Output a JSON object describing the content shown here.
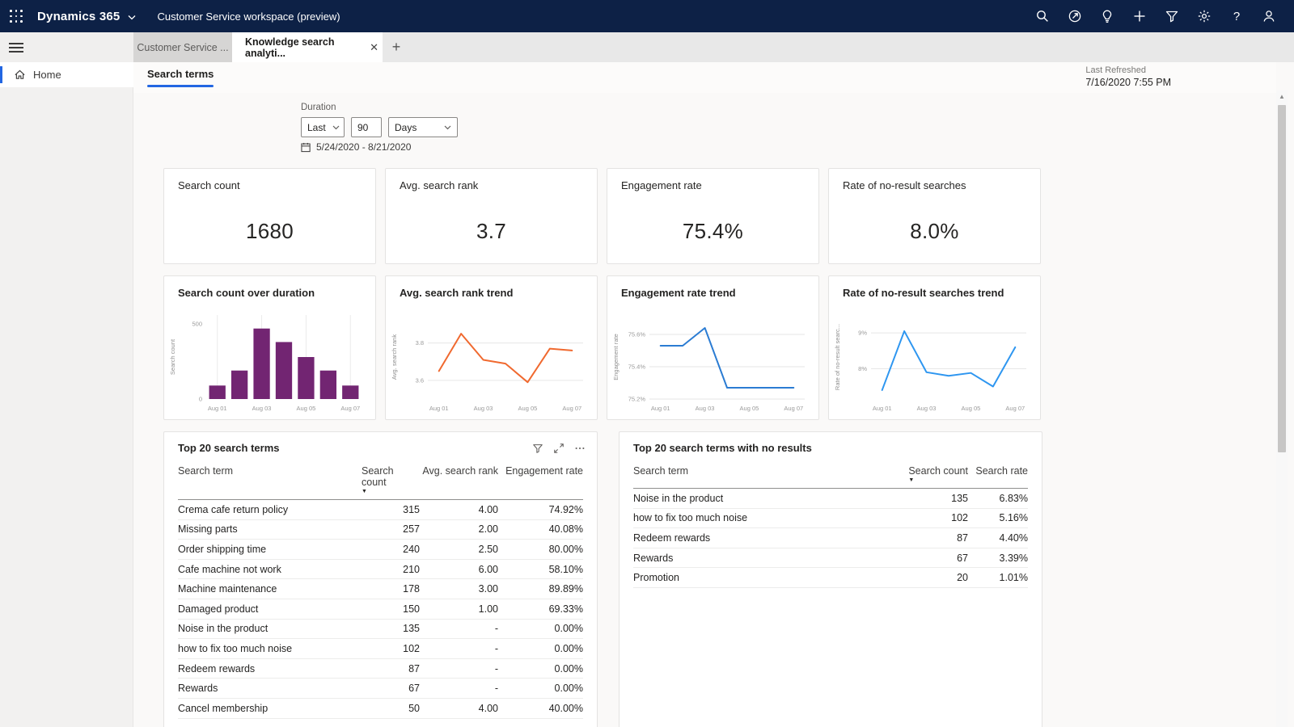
{
  "topbar": {
    "brand": "Dynamics 365",
    "workspace": "Customer Service workspace (preview)",
    "icons": [
      "search-icon",
      "guided-help-icon",
      "insights-icon",
      "add-icon",
      "filter-icon",
      "settings-icon",
      "help-icon",
      "account-icon"
    ],
    "bg_color": "#0d2146"
  },
  "tabs": {
    "inactive": "Customer Service ...",
    "active": "Knowledge search analyti...",
    "close_glyph": "✕",
    "add_glyph": "+"
  },
  "sidebar": {
    "home": "Home"
  },
  "header": {
    "pivot": "Search terms",
    "last_refreshed_label": "Last Refreshed",
    "last_refreshed_value": "7/16/2020 7:55 PM",
    "accent_color": "#2266e2"
  },
  "filters": {
    "duration_label": "Duration",
    "range_mode": "Last",
    "range_value": "90",
    "range_unit": "Days",
    "date_range": "5/24/2020 - 8/21/2020"
  },
  "kpis": [
    {
      "title": "Search count",
      "value": "1680"
    },
    {
      "title": "Avg. search rank",
      "value": "3.7"
    },
    {
      "title": "Engagement rate",
      "value": "75.4%"
    },
    {
      "title": "Rate of no-result searches",
      "value": "8.0%"
    }
  ],
  "chart_data": [
    {
      "type": "bar",
      "title": "Search count over duration",
      "ylabel": "Search count",
      "categories": [
        "Aug 01",
        "Aug 02",
        "Aug 03",
        "Aug 04",
        "Aug 05",
        "Aug 06",
        "Aug 07"
      ],
      "values": [
        90,
        190,
        470,
        380,
        280,
        190,
        90
      ],
      "ylim": [
        0,
        560
      ],
      "y_ticks": [
        {
          "v": 0,
          "label": "0"
        },
        {
          "v": 500,
          "label": "500"
        }
      ],
      "x_labeled": [
        0,
        2,
        4,
        6
      ],
      "color": "#722572",
      "grid": "vertical",
      "legend": "none"
    },
    {
      "type": "line",
      "title": "Avg. search rank trend",
      "ylabel": "Avg. search rank",
      "categories": [
        "Aug 01",
        "Aug 02",
        "Aug 03",
        "Aug 04",
        "Aug 05",
        "Aug 06",
        "Aug 07"
      ],
      "values": [
        3.65,
        3.85,
        3.71,
        3.69,
        3.59,
        3.77,
        3.76
      ],
      "ylim": [
        3.5,
        3.95
      ],
      "y_ticks": [
        {
          "v": 3.6,
          "label": "3.6"
        },
        {
          "v": 3.8,
          "label": "3.8"
        }
      ],
      "x_labeled": [
        0,
        2,
        4,
        6
      ],
      "color": "#f0692f",
      "grid": "horizontal",
      "legend": "none"
    },
    {
      "type": "line",
      "title": "Engagement rate trend",
      "ylabel": "Engagement rate",
      "categories": [
        "Aug 01",
        "Aug 02",
        "Aug 03",
        "Aug 04",
        "Aug 05",
        "Aug 06",
        "Aug 07"
      ],
      "values": [
        75.53,
        75.53,
        75.64,
        75.27,
        75.27,
        75.27,
        75.27
      ],
      "ylim": [
        75.2,
        75.72
      ],
      "y_ticks": [
        {
          "v": 75.2,
          "label": "75.2%"
        },
        {
          "v": 75.4,
          "label": "75.4%"
        },
        {
          "v": 75.6,
          "label": "75.6%"
        }
      ],
      "x_labeled": [
        0,
        2,
        4,
        6
      ],
      "color": "#2b7cd3",
      "grid": "horizontal",
      "legend": "none"
    },
    {
      "type": "line",
      "title": "Rate of no-result searches trend",
      "ylabel": "Rate of no-result searc...",
      "categories": [
        "Aug 01",
        "Aug 02",
        "Aug 03",
        "Aug 04",
        "Aug 05",
        "Aug 06",
        "Aug 07"
      ],
      "values": [
        7.4,
        9.05,
        7.9,
        7.8,
        7.88,
        7.5,
        8.6
      ],
      "ylim": [
        7.15,
        9.5
      ],
      "y_ticks": [
        {
          "v": 8,
          "label": "8%"
        },
        {
          "v": 9,
          "label": "9%"
        }
      ],
      "x_labeled": [
        0,
        2,
        4,
        6
      ],
      "color": "#2e96f0",
      "grid": "horizontal",
      "legend": "none"
    }
  ],
  "tables": {
    "left": {
      "title": "Top 20 search terms",
      "icons": [
        "filter-icon",
        "focus-mode-icon",
        "more-options-icon"
      ],
      "columns": [
        "Search term",
        "Search count",
        "Avg. search rank",
        "Engagement rate"
      ],
      "sort_col": 1,
      "rows": [
        [
          "Crema cafe return policy",
          "315",
          "4.00",
          "74.92%"
        ],
        [
          "Missing parts",
          "257",
          "2.00",
          "40.08%"
        ],
        [
          "Order shipping time",
          "240",
          "2.50",
          "80.00%"
        ],
        [
          "Cafe machine not work",
          "210",
          "6.00",
          "58.10%"
        ],
        [
          "Machine maintenance",
          "178",
          "3.00",
          "89.89%"
        ],
        [
          "Damaged product",
          "150",
          "1.00",
          "69.33%"
        ],
        [
          "Noise in the product",
          "135",
          "-",
          "0.00%"
        ],
        [
          "how to fix too much noise",
          "102",
          "-",
          "0.00%"
        ],
        [
          "Redeem rewards",
          "87",
          "-",
          "0.00%"
        ],
        [
          "Rewards",
          "67",
          "-",
          "0.00%"
        ],
        [
          "Cancel membership",
          "50",
          "4.00",
          "40.00%"
        ]
      ]
    },
    "right": {
      "title": "Top 20 search terms with no results",
      "columns": [
        "Search term",
        "Search count",
        "Search rate"
      ],
      "sort_col": 1,
      "rows": [
        [
          "Noise in the product",
          "135",
          "6.83%"
        ],
        [
          "how to fix too much noise",
          "102",
          "5.16%"
        ],
        [
          "Redeem rewards",
          "87",
          "4.40%"
        ],
        [
          "Rewards",
          "67",
          "3.39%"
        ],
        [
          "Promotion",
          "20",
          "1.01%"
        ]
      ]
    }
  }
}
